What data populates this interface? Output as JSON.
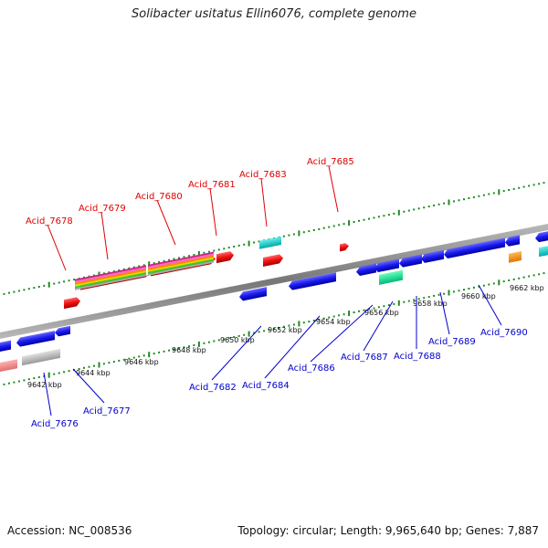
{
  "title": "Solibacter usitatus Ellin6076, complete genome",
  "accession": "Accession: NC_008536",
  "summary": "Topology: circular; Length: 9,965,640 bp; Genes: 7,887",
  "ticks": [
    {
      "label": "9642 kbp",
      "pos": 9642
    },
    {
      "label": "9644 kbp",
      "pos": 9644
    },
    {
      "label": "9646 kbp",
      "pos": 9646
    },
    {
      "label": "9648 kbp",
      "pos": 9648
    },
    {
      "label": "9650 kbp",
      "pos": 9650
    },
    {
      "label": "9652 kbp",
      "pos": 9652
    },
    {
      "label": "9654 kbp",
      "pos": 9654
    },
    {
      "label": "9656 kbp",
      "pos": 9656
    },
    {
      "label": "9658 kbp",
      "pos": 9658
    },
    {
      "label": "9660 kbp",
      "pos": 9660
    },
    {
      "label": "9662 kbp",
      "pos": 9662
    }
  ],
  "top_labels": [
    "Acid_7678",
    "Acid_7679",
    "Acid_7680",
    "Acid_7681",
    "Acid_7683",
    "Acid_7685"
  ],
  "bottom_labels": [
    "Acid_7676",
    "Acid_7677",
    "Acid_7682",
    "Acid_7684",
    "Acid_7686",
    "Acid_7687",
    "Acid_7688",
    "Acid_7689",
    "Acid_7690"
  ],
  "colors": {
    "forward_gene": "#ee1111",
    "reverse_gene": "#1a1aee",
    "label_top": "#e00000",
    "label_bottom": "#0000cc",
    "tick": "#228822",
    "backbone": "#888888"
  }
}
